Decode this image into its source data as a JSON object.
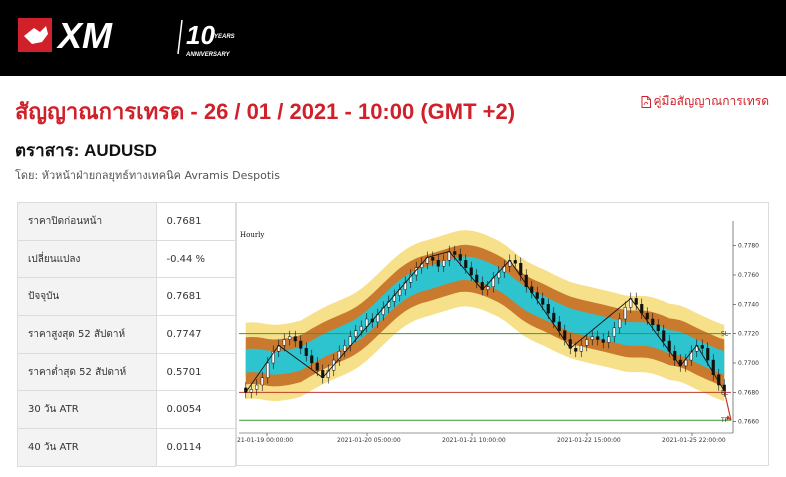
{
  "header": {
    "logo_text": "XM",
    "anniversary_number": "10",
    "anniversary_years": "YEARS",
    "anniversary_label": "ANNIVERSARY"
  },
  "page": {
    "title": "สัญญาณการเทรด - 26 / 01 / 2021 - 10:00 (GMT +2)",
    "guide_link": "คู่มือสัญญาณการเทรด",
    "instrument": "ตราสาร: AUDUSD",
    "author": "โดย: หัวหน้าฝ่ายกลยุทธ์ทางเทคนิค Avramis Despotis"
  },
  "stats": [
    {
      "label": "ราคาปิดก่อนหน้า",
      "value": "0.7681"
    },
    {
      "label": "เปลี่ยนแปลง",
      "value": "-0.44 %"
    },
    {
      "label": "ปัจจุบัน",
      "value": "0.7681"
    },
    {
      "label": "ราคาสูงสุด 52 สัปดาห์",
      "value": "0.7747"
    },
    {
      "label": "ราคาต่ำสุด 52 สัปดาห์",
      "value": "0.5701"
    },
    {
      "label": "30 วัน ATR",
      "value": "0.0054"
    },
    {
      "label": "40 วัน ATR",
      "value": "0.0114"
    }
  ],
  "colors": {
    "brand_red": "#d0202a",
    "band_yellow": "#f7e08a",
    "band_brown": "#c97a2e",
    "band_cyan": "#2ec4cf",
    "sl_line": "#3a9a3a",
    "el_line": "#c0392b",
    "tp_line": "#3a9a3a"
  },
  "chart_data": {
    "type": "candlestick",
    "title": "Hourly",
    "y_ticks": [
      "0.7780",
      "0.7760",
      "0.7740",
      "0.7720",
      "0.7700",
      "0.7680",
      "0.7660"
    ],
    "ylim": [
      0.7655,
      0.779
    ],
    "x_ticks": [
      "21-01-19 00:00:00",
      "2021-01-20 05:00:00",
      "2021-01-21 10:00:00",
      "2021-01-22 15:00:00",
      "2021-01-25 22:00:00"
    ],
    "levels": [
      {
        "label": "SL",
        "value": 0.772
      },
      {
        "label": "EL",
        "value": 0.768
      },
      {
        "label": "TP",
        "value": 0.7661
      }
    ],
    "close": [
      0.768,
      0.7682,
      0.7685,
      0.769,
      0.77,
      0.7708,
      0.7712,
      0.7716,
      0.7718,
      0.7715,
      0.771,
      0.7705,
      0.77,
      0.7695,
      0.769,
      0.7695,
      0.7702,
      0.7708,
      0.7712,
      0.7718,
      0.7722,
      0.7725,
      0.773,
      0.7728,
      0.7733,
      0.7738,
      0.7742,
      0.7746,
      0.775,
      0.7755,
      0.776,
      0.7765,
      0.7768,
      0.7772,
      0.777,
      0.7766,
      0.777,
      0.7776,
      0.7774,
      0.777,
      0.7765,
      0.776,
      0.7755,
      0.775,
      0.7752,
      0.7758,
      0.7762,
      0.7766,
      0.777,
      0.7768,
      0.776,
      0.7752,
      0.7748,
      0.7744,
      0.774,
      0.7734,
      0.7728,
      0.7722,
      0.7716,
      0.771,
      0.7708,
      0.7712,
      0.7716,
      0.7718,
      0.7716,
      0.7714,
      0.7718,
      0.7724,
      0.773,
      0.7738,
      0.7744,
      0.774,
      0.7734,
      0.773,
      0.7726,
      0.7722,
      0.7715,
      0.7708,
      0.7702,
      0.7698,
      0.7702,
      0.7708,
      0.7712,
      0.771,
      0.7702,
      0.7692,
      0.7685,
      0.7681
    ]
  }
}
